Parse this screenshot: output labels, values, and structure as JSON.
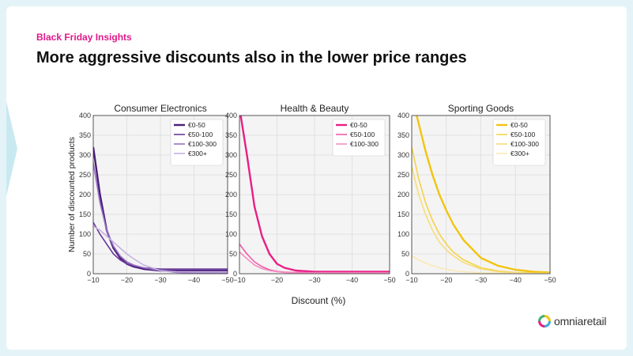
{
  "header": {
    "kicker": "Black Friday Insights",
    "title": "More aggressive discounts also in the lower price ranges"
  },
  "logo": {
    "text": "omniaretail",
    "icon": "omniaretail-logo-icon"
  },
  "colors": {
    "kicker": "#e0188a",
    "electronics": [
      "#4b1d7a",
      "#6a3a9c",
      "#9672c2",
      "#c5b3df"
    ],
    "beauty": [
      "#ea1e86",
      "#ef5aa5",
      "#f48fc2"
    ],
    "sporting": [
      "#f2c40f",
      "#f5d24a",
      "#f7dd78",
      "#fae9b4"
    ]
  },
  "chart_data": [
    {
      "type": "line",
      "title": "Consumer Electronics",
      "xlabel": "Discount (%)",
      "ylabel": "Number of discounted products",
      "xlim": [
        -10,
        -50
      ],
      "ylim": [
        0,
        400
      ],
      "x_ticks": [
        "−10",
        "−20",
        "−30",
        "−40",
        "−50"
      ],
      "y_ticks": [
        "0",
        "50",
        "100",
        "150",
        "200",
        "250",
        "300",
        "350",
        "400"
      ],
      "grid": true,
      "legend_position": "top-right",
      "x": [
        -10,
        -12,
        -14,
        -16,
        -18,
        -20,
        -22,
        -25,
        -30,
        -35,
        -40,
        -45,
        -50
      ],
      "series": [
        {
          "name": "€0-50",
          "values": [
            320,
            200,
            110,
            65,
            40,
            25,
            18,
            12,
            8,
            8,
            8,
            8,
            8
          ]
        },
        {
          "name": "€50-100",
          "values": [
            130,
            100,
            75,
            50,
            35,
            25,
            20,
            15,
            12,
            12,
            12,
            12,
            12
          ]
        },
        {
          "name": "€100-300",
          "values": [
            280,
            180,
            110,
            70,
            45,
            30,
            22,
            15,
            8,
            3,
            2,
            2,
            2
          ]
        },
        {
          "name": "€300+",
          "values": [
            120,
            110,
            95,
            80,
            65,
            50,
            38,
            22,
            8,
            5,
            5,
            5,
            5
          ]
        }
      ]
    },
    {
      "type": "line",
      "title": "Health & Beauty",
      "xlim": [
        -10,
        -50
      ],
      "ylim": [
        0,
        400
      ],
      "x_ticks": [
        "−10",
        "−20",
        "−30",
        "−40",
        "−50"
      ],
      "y_ticks": [
        "0",
        "50",
        "100",
        "150",
        "200",
        "250",
        "300",
        "350",
        "400"
      ],
      "grid": true,
      "legend_position": "top-right",
      "x": [
        -10,
        -12,
        -14,
        -16,
        -18,
        -20,
        -22,
        -25,
        -30,
        -35,
        -40,
        -45,
        -50
      ],
      "series": [
        {
          "name": "€0-50",
          "values": [
            420,
            300,
            170,
            95,
            50,
            25,
            15,
            8,
            5,
            5,
            5,
            5,
            5
          ]
        },
        {
          "name": "€50-100",
          "values": [
            75,
            50,
            30,
            18,
            10,
            6,
            4,
            3,
            3,
            3,
            3,
            3,
            3
          ]
        },
        {
          "name": "€100-300",
          "values": [
            55,
            38,
            22,
            13,
            8,
            5,
            3,
            2,
            2,
            2,
            2,
            2,
            2
          ]
        }
      ]
    },
    {
      "type": "line",
      "title": "Sporting Goods",
      "xlim": [
        -10,
        -50
      ],
      "ylim": [
        0,
        400
      ],
      "x_ticks": [
        "−10",
        "−20",
        "−30",
        "−40",
        "−50"
      ],
      "y_ticks": [
        "0",
        "50",
        "100",
        "150",
        "200",
        "250",
        "300",
        "350",
        "400"
      ],
      "grid": true,
      "legend_position": "top-right",
      "x": [
        -10,
        -12,
        -14,
        -16,
        -18,
        -20,
        -22,
        -25,
        -30,
        -35,
        -40,
        -45,
        -50
      ],
      "series": [
        {
          "name": "€0-50",
          "values": [
            450,
            380,
            310,
            250,
            200,
            160,
            125,
            85,
            40,
            20,
            10,
            5,
            3
          ]
        },
        {
          "name": "€50-100",
          "values": [
            320,
            240,
            180,
            135,
            100,
            75,
            55,
            35,
            15,
            7,
            3,
            2,
            1
          ]
        },
        {
          "name": "€100-300",
          "values": [
            270,
            200,
            150,
            110,
            80,
            60,
            45,
            28,
            12,
            5,
            2,
            1,
            1
          ]
        },
        {
          "name": "€300+",
          "values": [
            45,
            35,
            27,
            20,
            15,
            11,
            8,
            5,
            2,
            1,
            1,
            0,
            0
          ]
        }
      ]
    }
  ]
}
